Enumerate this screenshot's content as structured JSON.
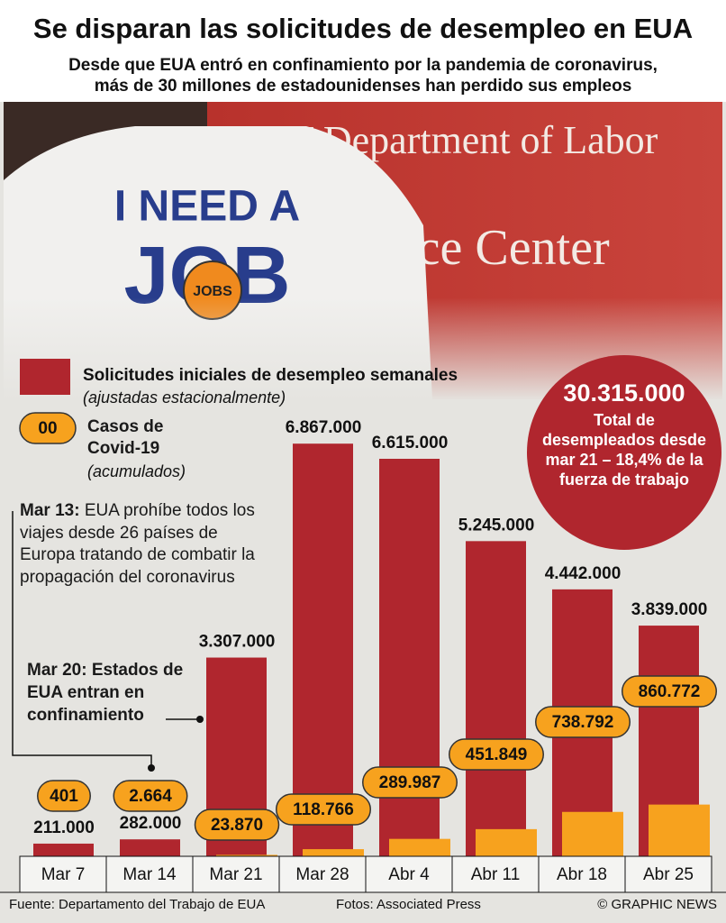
{
  "title": "Se disparan las solicitudes de desempleo en EUA",
  "subtitle": [
    "Desde que EUA entró en confinamiento por la pandemia de coronavirus,",
    "más de 30 millones de estadounidenses han perdido sus empleos"
  ],
  "photo_text": [
    "YT Department of Labor",
    "rce Center",
    "I NEED A",
    "JOB",
    "JOBS"
  ],
  "chart_data": {
    "type": "bar",
    "categories": [
      "Mar 7",
      "Mar 14",
      "Mar 21",
      "Mar 28",
      "Abr 4",
      "Abr 11",
      "Abr 18",
      "Abr 25"
    ],
    "series": [
      {
        "name": "Solicitudes iniciales de desempleo semanales",
        "note": "(ajustadas estacionalmente)",
        "color": "#b0262e",
        "values": [
          211000,
          282000,
          3307000,
          6867000,
          6615000,
          5245000,
          4442000,
          3839000
        ],
        "value_labels": [
          "211.000",
          "282.000",
          "3.307.000",
          "6.867.000",
          "6.615.000",
          "5.245.000",
          "4.442.000",
          "3.839.000"
        ]
      },
      {
        "name": "Casos de Covid-19",
        "note": "(acumulados)",
        "legend_sample": "00",
        "color": "#f7a21e",
        "values": [
          401,
          2664,
          23870,
          118766,
          289987,
          451849,
          738792,
          860772
        ],
        "value_labels": [
          "401",
          "2.664",
          "23.870",
          "118.766",
          "289.987",
          "451.849",
          "738.792",
          "860.772"
        ]
      }
    ],
    "ylim": [
      0,
      7500000
    ]
  },
  "annotations": [
    {
      "label": "Mar 13:",
      "text": "EUA prohíbe todos los viajes desde 26 países de Europa tratando de combatir la propagación del coronavirus"
    },
    {
      "label": "Mar 20:",
      "text": "Estados de EUA entran en confinamiento"
    }
  ],
  "callout": {
    "value": "30.315.000",
    "text": "Total de desempleados desde mar 21 – 18,4% de la fuerza de trabajo"
  },
  "footer": {
    "source": "Fuente: Departamento del Trabajo de EUA",
    "photos": "Fotos: Associated Press",
    "credit": "© GRAPHIC NEWS"
  }
}
